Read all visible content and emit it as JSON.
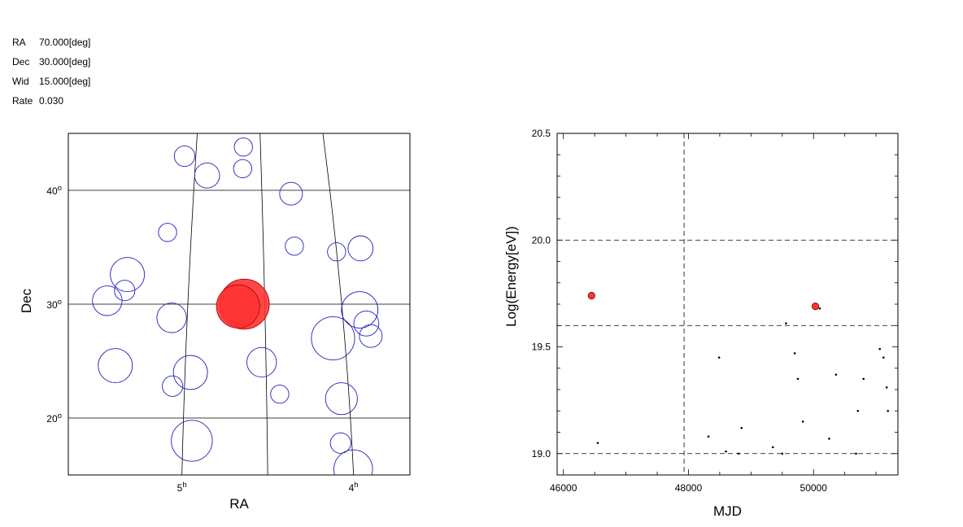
{
  "info": {
    "ra": {
      "label": "RA",
      "value": "70.000[deg]"
    },
    "dec": {
      "label": "Dec",
      "value": "30.000[deg]"
    },
    "wid": {
      "label": "Wid",
      "value": "15.000[deg]"
    },
    "rate": {
      "label": "Rate",
      "value": "0.030"
    }
  },
  "colors": {
    "event_circle": "#2222bb",
    "highlight": "#ff3333",
    "grid": "#000000"
  },
  "chart_data": [
    {
      "type": "scatter",
      "name": "sky-map",
      "xlabel": "RA",
      "ylabel": "Dec",
      "ra_ticks": [
        {
          "label": "5",
          "sup": "h",
          "ra_deg": 75
        },
        {
          "label": "4",
          "sup": "h",
          "ra_deg": 60
        }
      ],
      "dec_ticks": [
        {
          "label": "40",
          "sup": "o",
          "dec_deg": 40
        },
        {
          "label": "30",
          "sup": "o",
          "dec_deg": 30
        },
        {
          "label": "20",
          "sup": "o",
          "dec_deg": 20
        }
      ],
      "meridians_deg": [
        67.5,
        75,
        60
      ],
      "parallels_deg": [
        20,
        30,
        40
      ],
      "center": [
        70,
        30
      ],
      "width_deg": 15,
      "events": [
        {
          "ra": 69.5,
          "dec": 43.8,
          "r": 0.4
        },
        {
          "ra": 76.3,
          "dec": 43.0,
          "r": 0.45
        },
        {
          "ra": 73.6,
          "dec": 41.3,
          "r": 0.55
        },
        {
          "ra": 69.6,
          "dec": 41.9,
          "r": 0.4
        },
        {
          "ra": 64.3,
          "dec": 39.7,
          "r": 0.5
        },
        {
          "ra": 77.5,
          "dec": 36.3,
          "r": 0.4
        },
        {
          "ra": 64.3,
          "dec": 35.1,
          "r": 0.4
        },
        {
          "ra": 60.0,
          "dec": 34.6,
          "r": 0.4
        },
        {
          "ra": 57.5,
          "dec": 34.9,
          "r": 0.55
        },
        {
          "ra": 81.2,
          "dec": 32.6,
          "r": 0.75
        },
        {
          "ra": 81.3,
          "dec": 31.2,
          "r": 0.45
        },
        {
          "ra": 82.9,
          "dec": 30.3,
          "r": 0.65
        },
        {
          "ra": 58.3,
          "dec": 29.5,
          "r": 0.8
        },
        {
          "ra": 57.8,
          "dec": 28.3,
          "r": 0.55
        },
        {
          "ra": 76.5,
          "dec": 28.8,
          "r": 0.65
        },
        {
          "ra": 61.1,
          "dec": 27.0,
          "r": 0.95
        },
        {
          "ra": 57.5,
          "dec": 27.2,
          "r": 0.5
        },
        {
          "ra": 81.5,
          "dec": 24.6,
          "r": 0.75
        },
        {
          "ra": 67.9,
          "dec": 24.9,
          "r": 0.65
        },
        {
          "ra": 74.5,
          "dec": 24.0,
          "r": 0.75
        },
        {
          "ra": 76.1,
          "dec": 22.8,
          "r": 0.45
        },
        {
          "ra": 66.3,
          "dec": 22.1,
          "r": 0.4
        },
        {
          "ra": 60.7,
          "dec": 21.7,
          "r": 0.7
        },
        {
          "ra": 74.2,
          "dec": 18.0,
          "r": 0.9
        },
        {
          "ra": 61.0,
          "dec": 17.8,
          "r": 0.45
        },
        {
          "ra": 60.0,
          "dec": 15.5,
          "r": 0.85
        }
      ],
      "highlighted": [
        {
          "ra": 69.5,
          "dec": 30.0,
          "r": 1.1
        },
        {
          "ra": 70.1,
          "dec": 29.8,
          "r": 0.95
        }
      ]
    },
    {
      "type": "scatter",
      "name": "energy-vs-mjd",
      "xlabel": "MJD",
      "ylabel": "Log(Energy[eV])",
      "xlim": [
        45900,
        51350
      ],
      "ylim": [
        18.9,
        20.5
      ],
      "x_ticks": [
        46000,
        48000,
        50000
      ],
      "y_ticks": [
        "19.0",
        "19.5",
        "20.0",
        "20.5"
      ],
      "h_dashed": [
        19.0,
        19.6,
        20.0
      ],
      "v_dashed": [
        47930
      ],
      "points": [
        [
          46550,
          19.05
        ],
        [
          48320,
          19.08
        ],
        [
          48490,
          19.45
        ],
        [
          48600,
          19.01
        ],
        [
          48800,
          19.0
        ],
        [
          48850,
          19.12
        ],
        [
          49350,
          19.03
        ],
        [
          49500,
          19.0
        ],
        [
          49560,
          19.61
        ],
        [
          49700,
          19.47
        ],
        [
          49750,
          19.35
        ],
        [
          49830,
          19.15
        ],
        [
          50100,
          19.68
        ],
        [
          50250,
          19.07
        ],
        [
          50360,
          19.37
        ],
        [
          50680,
          19.0
        ],
        [
          50710,
          19.2
        ],
        [
          50800,
          19.35
        ],
        [
          51060,
          19.49
        ],
        [
          51120,
          19.45
        ],
        [
          51170,
          19.31
        ],
        [
          51190,
          19.2
        ]
      ],
      "highlighted_points": [
        [
          46450,
          19.74
        ],
        [
          50030,
          19.69
        ]
      ]
    }
  ]
}
